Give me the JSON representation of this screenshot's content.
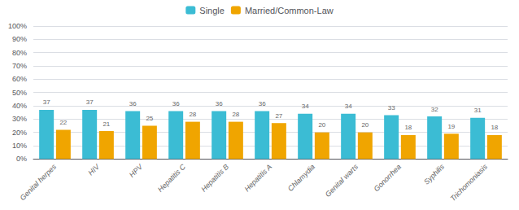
{
  "chart_data": {
    "type": "bar",
    "categories": [
      "Genital herpes",
      "HIV",
      "HPV",
      "Hepatitis C",
      "Hepatitis B",
      "Hepatitis A",
      "Chlamydia",
      "Genital warts",
      "Gonorrhea",
      "Syphilis",
      "Trichomoniasis"
    ],
    "series": [
      {
        "name": "Single",
        "color": "#3bbcd4",
        "values": [
          37,
          37,
          36,
          36,
          36,
          36,
          34,
          34,
          33,
          32,
          31
        ]
      },
      {
        "name": "Married/Common-Law",
        "color": "#f0a500",
        "values": [
          22,
          21,
          25,
          28,
          28,
          27,
          20,
          20,
          18,
          19,
          18
        ]
      }
    ],
    "ylim": [
      0,
      100
    ],
    "yticks": [
      {
        "value": 0,
        "label": "0%"
      },
      {
        "value": 10,
        "label": "10%"
      },
      {
        "value": 20,
        "label": "20%"
      },
      {
        "value": 30,
        "label": "30%"
      },
      {
        "value": 40,
        "label": "40%"
      },
      {
        "value": 50,
        "label": "50%"
      },
      {
        "value": 60,
        "label": "60%"
      },
      {
        "value": 70,
        "label": "70%"
      },
      {
        "value": 80,
        "label": "80%"
      },
      {
        "value": 90,
        "label": "90%"
      },
      {
        "value": 100,
        "label": "100%"
      }
    ],
    "grid": true,
    "data_labels": true,
    "legend": "top"
  }
}
